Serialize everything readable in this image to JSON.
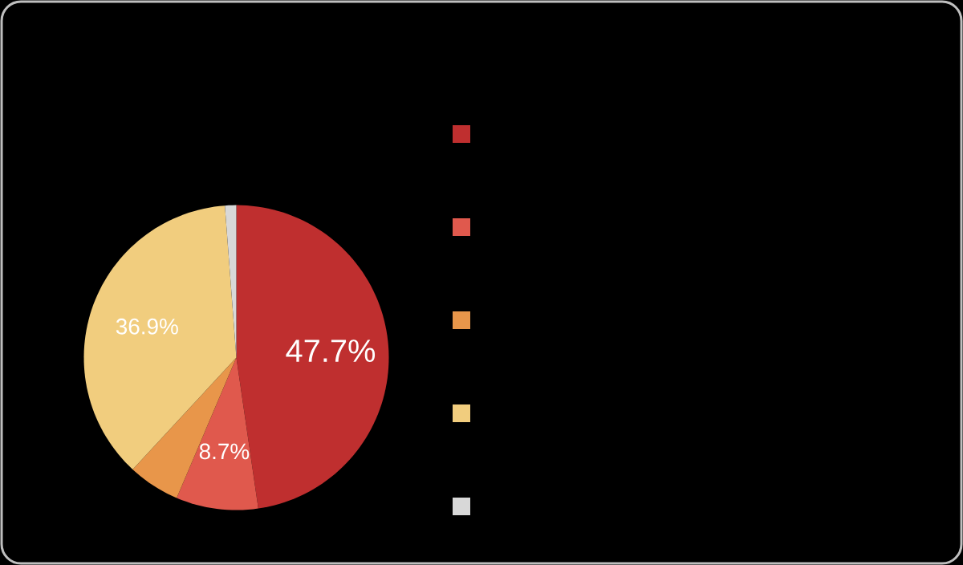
{
  "chart_data": {
    "type": "pie",
    "categories": [
      null,
      null,
      null,
      null,
      null
    ],
    "values": [
      47.7,
      8.7,
      5.5,
      36.9,
      1.2
    ],
    "colors": [
      "#bf2f2f",
      "#e0594d",
      "#e8964a",
      "#f1cd7e",
      "#d8d8d8"
    ],
    "value_labels": [
      "47.7%",
      "8.7%",
      null,
      "36.9%",
      null
    ]
  }
}
